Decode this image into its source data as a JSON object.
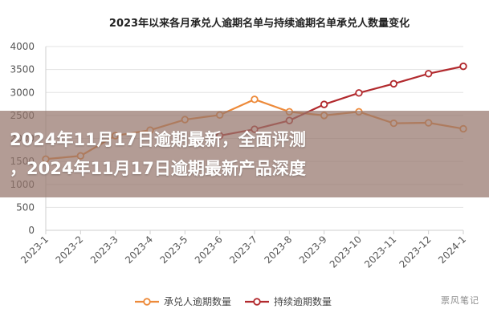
{
  "chart_data": {
    "type": "line",
    "title": "2023年以来各月承兑人逾期名单与持续逾期名单承兑人数量变化",
    "categories": [
      "2023-1",
      "2023-2",
      "2023-3",
      "2023-4",
      "2023-5",
      "2023-6",
      "2023-7",
      "2023-8",
      "2023-9",
      "2023-10",
      "2023-11",
      "2023-12",
      "2024-1"
    ],
    "ylim": [
      0,
      4000
    ],
    "yticks": [
      0,
      500,
      1000,
      1500,
      2000,
      2500,
      3000,
      3500,
      4000
    ],
    "grid": true,
    "legend_position": "bottom",
    "series": [
      {
        "name": "承兑人逾期数量",
        "color": "#ed8a3a",
        "values": [
          1550,
          1620,
          2060,
          2180,
          2410,
          2510,
          2850,
          2580,
          2500,
          2580,
          2330,
          2340,
          2210
        ]
      },
      {
        "name": "持续逾期数量",
        "color": "#b22a2e",
        "values": [
          null,
          null,
          null,
          null,
          null,
          2060,
          2200,
          2390,
          2740,
          2990,
          3190,
          3410,
          3570
        ]
      }
    ]
  },
  "overlay": {
    "line1": "2024年11月17日逾期最新，全面评测",
    "line2": "，2024年11月17日逾期最新产品深度"
  },
  "watermark": "票风笔记"
}
